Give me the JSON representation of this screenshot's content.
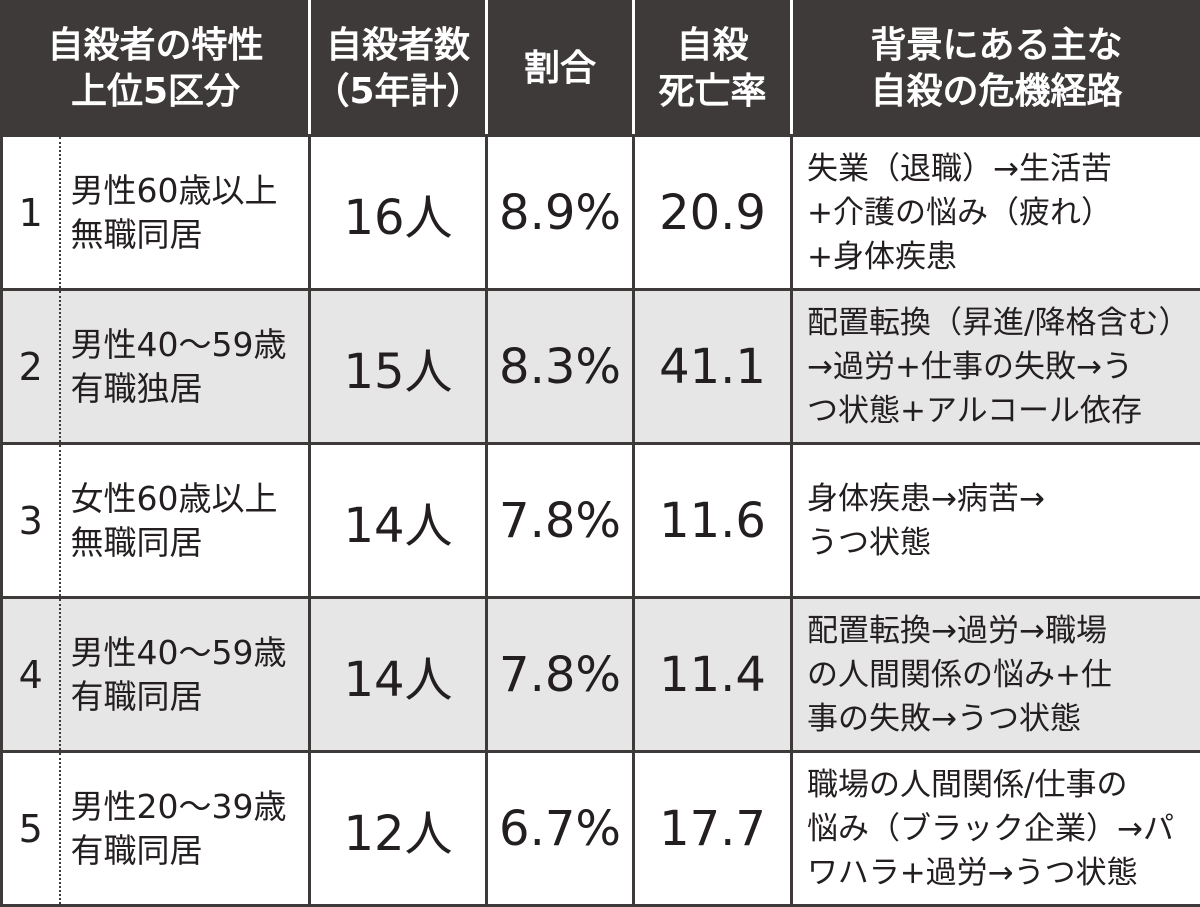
{
  "header": [
    [
      "自殺者の特性",
      "上位5区分"
    ],
    [
      "自殺者数",
      "（5年計）"
    ],
    [
      "割合"
    ],
    [
      "自殺",
      "死亡率"
    ],
    [
      "背景にある主な",
      "自殺の危機経路"
    ]
  ],
  "rows": [
    {
      "rank": "1",
      "group": [
        "男性60歳以上",
        "無職同居"
      ],
      "count": "16人",
      "ratio": "8.9%",
      "rate": "20.9",
      "path": [
        "失業（退職）→生活苦",
        "+介護の悩み（疲れ）",
        "+身体疾患"
      ]
    },
    {
      "rank": "2",
      "group": [
        "男性40〜59歳",
        "有職独居"
      ],
      "count": "15人",
      "ratio": "8.3%",
      "rate": "41.1",
      "path": [
        "配置転換（昇進/降格含む）",
        "→過労+仕事の失敗→う",
        "つ状態+アルコール依存"
      ]
    },
    {
      "rank": "3",
      "group": [
        "女性60歳以上",
        "無職同居"
      ],
      "count": "14人",
      "ratio": "7.8%",
      "rate": "11.6",
      "path": [
        "身体疾患→病苦→",
        "うつ状態"
      ]
    },
    {
      "rank": "4",
      "group": [
        "男性40〜59歳",
        "有職同居"
      ],
      "count": "14人",
      "ratio": "7.8%",
      "rate": "11.4",
      "path": [
        "配置転換→過労→職場",
        "の人間関係の悩み+仕",
        "事の失敗→うつ状態"
      ]
    },
    {
      "rank": "5",
      "group": [
        "男性20〜39歳",
        "有職同居"
      ],
      "count": "12人",
      "ratio": "6.7%",
      "rate": "17.7",
      "path": [
        "職場の人間関係/仕事の",
        "悩み（ブラック企業）→パ",
        "ワハラ+過労→うつ状態"
      ]
    }
  ]
}
